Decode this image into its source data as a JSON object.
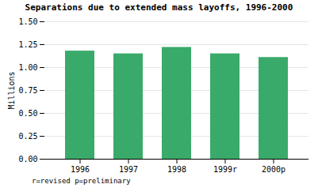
{
  "chart_data": {
    "type": "bar",
    "title": "Separations due to extended mass layoffs, 1996-2000",
    "ylabel": "Millions",
    "categories": [
      "1996",
      "1997",
      "1998",
      "1999r",
      "2000p"
    ],
    "values": [
      1.18,
      1.15,
      1.22,
      1.15,
      1.11
    ],
    "color": "#3aaa6a",
    "ylim": [
      0.0,
      1.5
    ],
    "yticks": [
      {
        "value": 0,
        "label": "0.00"
      },
      {
        "value": 0.25,
        "label": "0.25"
      },
      {
        "value": 0.5,
        "label": "0.50"
      },
      {
        "value": 0.75,
        "label": "0.75"
      },
      {
        "value": 1,
        "label": "1.00"
      },
      {
        "value": 1.25,
        "label": "1.25"
      },
      {
        "value": 1.5,
        "label": "1.50"
      }
    ],
    "grid": true,
    "annotations": [
      "r=revised  p=preliminary"
    ]
  }
}
